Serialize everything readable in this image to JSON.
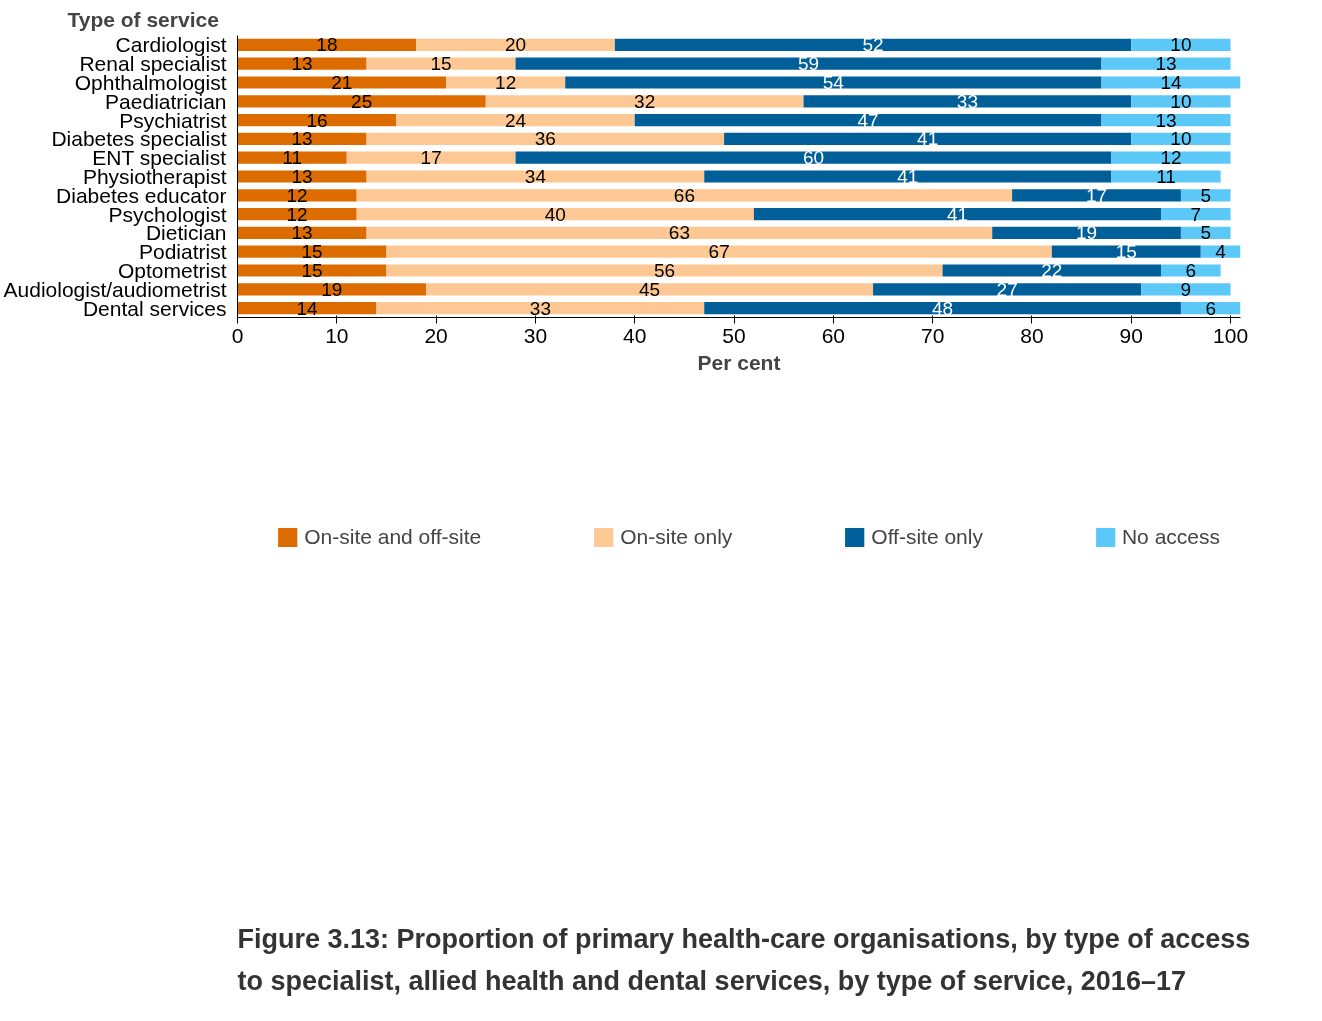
{
  "chart_data": {
    "type": "bar",
    "orientation": "horizontal",
    "stacked": true,
    "data_labels": true,
    "title": "Figure 3.13: Proportion of primary health-care organisations, by type of access to specialist, allied health and dental services, by type of service, 2016–17",
    "ylabel": "Type of service",
    "xlabel": "Per cent",
    "categories": [
      "Cardiologist",
      "Renal specialist",
      "Ophthalmologist",
      "Paediatrician",
      "Psychiatrist",
      "Diabetes specialist",
      "ENT specialist",
      "Physiotherapist",
      "Diabetes educator",
      "Psychologist",
      "Dietician",
      "Podiatrist",
      "Optometrist",
      "Audiologist/audiometrist",
      "Dental services"
    ],
    "series": [
      {
        "name": "On-site and off-site",
        "color": "#dd6c00",
        "values": [
          18,
          13,
          21,
          25,
          16,
          13,
          11,
          13,
          12,
          12,
          13,
          15,
          15,
          19,
          14
        ]
      },
      {
        "name": "On-site only",
        "color": "#fdc894",
        "values": [
          20,
          15,
          12,
          32,
          24,
          36,
          17,
          34,
          66,
          40,
          63,
          67,
          56,
          45,
          33
        ]
      },
      {
        "name": "Off-site only",
        "color": "#005e98",
        "values": [
          52,
          59,
          54,
          33,
          47,
          41,
          60,
          41,
          17,
          41,
          19,
          15,
          22,
          27,
          48
        ]
      },
      {
        "name": "No access",
        "color": "#5bc8f8",
        "values": [
          10,
          13,
          14,
          10,
          13,
          10,
          12,
          11,
          5,
          7,
          5,
          4,
          6,
          9,
          6
        ]
      }
    ],
    "xlim": [
      0,
      101
    ],
    "xticks": [
      0,
      10,
      20,
      30,
      40,
      50,
      60,
      70,
      80,
      90,
      100
    ],
    "grid": false,
    "legend": "bottom"
  }
}
